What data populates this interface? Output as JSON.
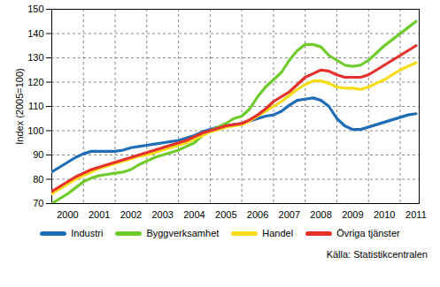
{
  "chart_data": {
    "type": "line",
    "y_label": "Index (2005=100)",
    "source": "Källa: Statistikcentralen",
    "x": [
      2000,
      2000.25,
      2000.5,
      2000.75,
      2001,
      2001.25,
      2001.5,
      2001.75,
      2002,
      2002.25,
      2002.5,
      2002.75,
      2003,
      2003.25,
      2003.5,
      2003.75,
      2004,
      2004.25,
      2004.5,
      2004.75,
      2005,
      2005.25,
      2005.5,
      2005.75,
      2006,
      2006.25,
      2006.5,
      2006.75,
      2007,
      2007.25,
      2007.5,
      2007.75,
      2008,
      2008.25,
      2008.5,
      2008.75,
      2009,
      2009.25,
      2009.5,
      2009.75,
      2010,
      2010.25,
      2010.5,
      2010.75,
      2011,
      2011.25,
      2011.5
    ],
    "series": [
      {
        "name": "Industri",
        "color": "#1f6db5",
        "values": [
          83,
          85,
          87,
          89,
          90.5,
          91.5,
          91.5,
          91.5,
          91.5,
          92,
          93,
          93.5,
          94,
          94.5,
          95,
          95.5,
          96,
          97,
          98,
          99.5,
          100.5,
          101.5,
          102,
          102.5,
          103,
          104,
          105,
          106,
          106.5,
          108,
          110.5,
          112.5,
          113,
          113.5,
          112.5,
          110,
          105,
          102,
          100.5,
          100.5,
          101.5,
          102.5,
          103.5,
          104.5,
          105.5,
          106.5,
          107
        ]
      },
      {
        "name": "Byggverksamhet",
        "color": "#6fca2c",
        "values": [
          70,
          72,
          74,
          76.5,
          79,
          80.5,
          81.5,
          82,
          82.5,
          83,
          84,
          86,
          87.5,
          89,
          90,
          91,
          92,
          93.5,
          95,
          98,
          100,
          101.5,
          103,
          105,
          106,
          109,
          114,
          118,
          121,
          124,
          129,
          133,
          135.5,
          135.5,
          134.5,
          131,
          129,
          127,
          126.5,
          127,
          129,
          132,
          135,
          137.5,
          140,
          142.5,
          145
        ]
      },
      {
        "name": "Handel",
        "color": "#f5dc14",
        "values": [
          74,
          76,
          78,
          80,
          81.5,
          83,
          84.5,
          85.5,
          86.5,
          87.5,
          88.5,
          89.5,
          90,
          91,
          92,
          93,
          94,
          95,
          96.5,
          98,
          99.5,
          100.5,
          101.5,
          102,
          102.5,
          104,
          106,
          108,
          110,
          112,
          114.5,
          117,
          119,
          120.5,
          120.5,
          119.5,
          118,
          117.5,
          117.5,
          117,
          118,
          119.5,
          121,
          123,
          125,
          126.5,
          128
        ]
      },
      {
        "name": "Övriga tjänster",
        "color": "#e5302b",
        "values": [
          75,
          77,
          79,
          81,
          82.5,
          84,
          85,
          86,
          87,
          88,
          89,
          90,
          91,
          92,
          93,
          94,
          95,
          96,
          97.5,
          99,
          100,
          101,
          102,
          102.5,
          103,
          104.5,
          106.5,
          109,
          112,
          114,
          116,
          119,
          122,
          123.5,
          125,
          124.5,
          123,
          122,
          122,
          122,
          123,
          125,
          127,
          129,
          131,
          133,
          135
        ]
      }
    ],
    "xlim": [
      2000,
      2011.6
    ],
    "xticks": [
      2000,
      2001,
      2002,
      2003,
      2004,
      2005,
      2006,
      2007,
      2008,
      2009,
      2010,
      2011
    ],
    "ylim": [
      70,
      150
    ],
    "yticks": [
      70,
      80,
      90,
      100,
      110,
      120,
      130,
      140,
      150
    ],
    "grid": true,
    "legend": "bottom"
  }
}
